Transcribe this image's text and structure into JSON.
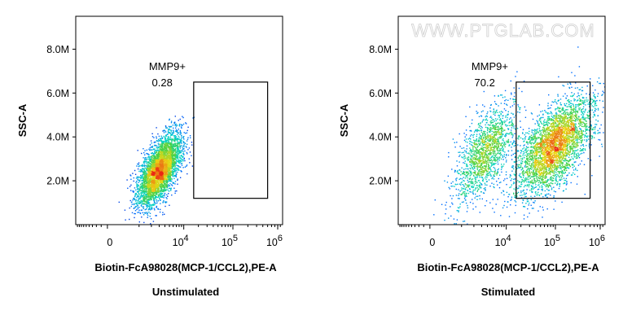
{
  "watermark": "WWW.PTGLAB.COM",
  "chart_data": [
    {
      "type": "scatter",
      "title": "",
      "caption": "Unstimulated",
      "xlabel": "Biotin-FcA98028(MCP-1/CCL2),PE-A",
      "ylabel": "SSC-A",
      "x_scale": "biexponential",
      "xlim": [
        -1000,
        1000000
      ],
      "ylim": [
        0,
        9500000
      ],
      "y_ticks": [
        "2.0M",
        "4.0M",
        "6.0M",
        "8.0M"
      ],
      "x_ticks": [
        {
          "label": "0",
          "base": "0",
          "exp": ""
        },
        {
          "label": "10^4",
          "base": "10",
          "exp": "4"
        },
        {
          "label": "10^5",
          "base": "10",
          "exp": "5"
        },
        {
          "label": "10^6",
          "base": "10",
          "exp": "6"
        }
      ],
      "gate": {
        "name": "MMP9+",
        "percent": "0.28",
        "x_range": [
          16000,
          500000
        ],
        "y_range": [
          1200000,
          6500000
        ]
      },
      "populations": [
        {
          "center_x": 3000,
          "center_y": 2500000,
          "spread_x": 0.22,
          "spread_y": 800000,
          "fraction": 1.0
        }
      ],
      "n_events": 4000
    },
    {
      "type": "scatter",
      "title": "",
      "caption": "Stimulated",
      "xlabel": "Biotin-FcA98028(MCP-1/CCL2),PE-A",
      "ylabel": "SSC-A",
      "x_scale": "biexponential",
      "xlim": [
        -1000,
        1000000
      ],
      "ylim": [
        0,
        9500000
      ],
      "y_ticks": [
        "2.0M",
        "4.0M",
        "6.0M",
        "8.0M"
      ],
      "x_ticks": [
        {
          "label": "0",
          "base": "0",
          "exp": ""
        },
        {
          "label": "10^4",
          "base": "10",
          "exp": "4"
        },
        {
          "label": "10^5",
          "base": "10",
          "exp": "5"
        },
        {
          "label": "10^6",
          "base": "10",
          "exp": "6"
        }
      ],
      "gate": {
        "name": "MMP9+",
        "percent": "70.2",
        "x_range": [
          16000,
          500000
        ],
        "y_range": [
          1200000,
          6500000
        ]
      },
      "populations": [
        {
          "center_x": 3500,
          "center_y": 3300000,
          "spread_x": 0.3,
          "spread_y": 1100000,
          "fraction": 0.3
        },
        {
          "center_x": 90000,
          "center_y": 3600000,
          "spread_x": 0.38,
          "spread_y": 1100000,
          "fraction": 0.7
        }
      ],
      "n_events": 5000
    }
  ]
}
